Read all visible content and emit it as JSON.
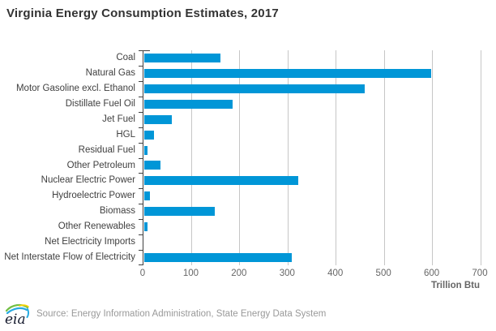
{
  "chart_data": {
    "type": "bar",
    "orientation": "horizontal",
    "title": "Virginia Energy Consumption Estimates, 2017",
    "categories": [
      "Coal",
      "Natural Gas",
      "Motor Gasoline excl. Ethanol",
      "Distillate Fuel Oil",
      "Jet Fuel",
      "HGL",
      "Residual Fuel",
      "Other Petroleum",
      "Nuclear Electric Power",
      "Hydroelectric Power",
      "Biomass",
      "Other Renewables",
      "Net Electricity Imports",
      "Net Interstate Flow of Electricity"
    ],
    "values": [
      158,
      595,
      457,
      183,
      58,
      21,
      7,
      33,
      319,
      11,
      147,
      6,
      0,
      307
    ],
    "xlabel": "Trillion Btu",
    "xlim": [
      0,
      700
    ],
    "xticks": [
      0,
      100,
      200,
      300,
      400,
      500,
      600,
      700
    ],
    "grid": true,
    "legend": "none",
    "bar_color": "#0096d7"
  },
  "colors": {
    "bar": "#0096d7",
    "gridline": "#c6c6c6",
    "axis": "#404040",
    "title_text": "#333333",
    "tick_text": "#666666",
    "category_text": "#404040",
    "source_text": "#999999",
    "logo_green": "#72bf44",
    "logo_blue": "#27aae1",
    "logo_yellow": "#ffd200",
    "logo_text_color": "#151a2d"
  },
  "footer": {
    "logo_text": "eia",
    "source": "Source: Energy Information Administration, State Energy Data System"
  }
}
